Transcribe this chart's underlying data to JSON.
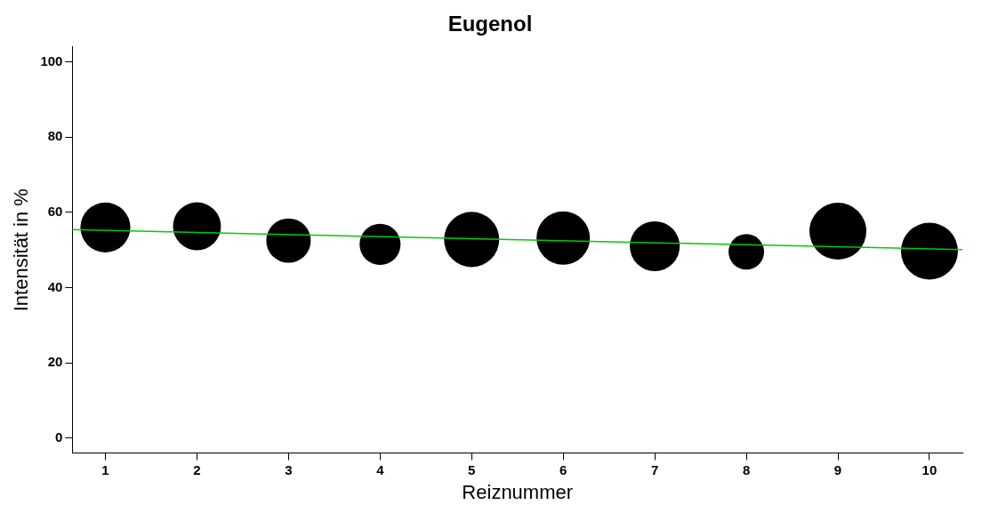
{
  "chart_data": {
    "type": "bubble",
    "title": "Eugenol",
    "xlabel": "Reiznummer",
    "ylabel": "Intensität in %",
    "x": [
      1,
      2,
      3,
      4,
      5,
      6,
      7,
      8,
      9,
      10
    ],
    "series": [
      {
        "color": "#000000",
        "values": [
          56,
          56.3,
          52.5,
          51.5,
          52.8,
          53.2,
          51,
          49.5,
          55,
          49.7
        ],
        "sizes": [
          0.77,
          0.71,
          0.61,
          0.52,
          0.94,
          0.88,
          0.77,
          0.39,
          1,
          1
        ]
      },
      {
        "type": "line",
        "color": "#00cc00",
        "x": [
          0.64,
          10.36
        ],
        "values": [
          55.4,
          50.1
        ]
      }
    ],
    "xlim": [
      0.64,
      10.36
    ],
    "xticks": [
      1,
      2,
      3,
      4,
      5,
      6,
      7,
      8,
      9,
      10
    ],
    "ylim": [
      -4,
      104
    ],
    "yticks": [
      0,
      20,
      40,
      60,
      80,
      100
    ],
    "grid": false,
    "legend": false,
    "line_style": "solid"
  }
}
